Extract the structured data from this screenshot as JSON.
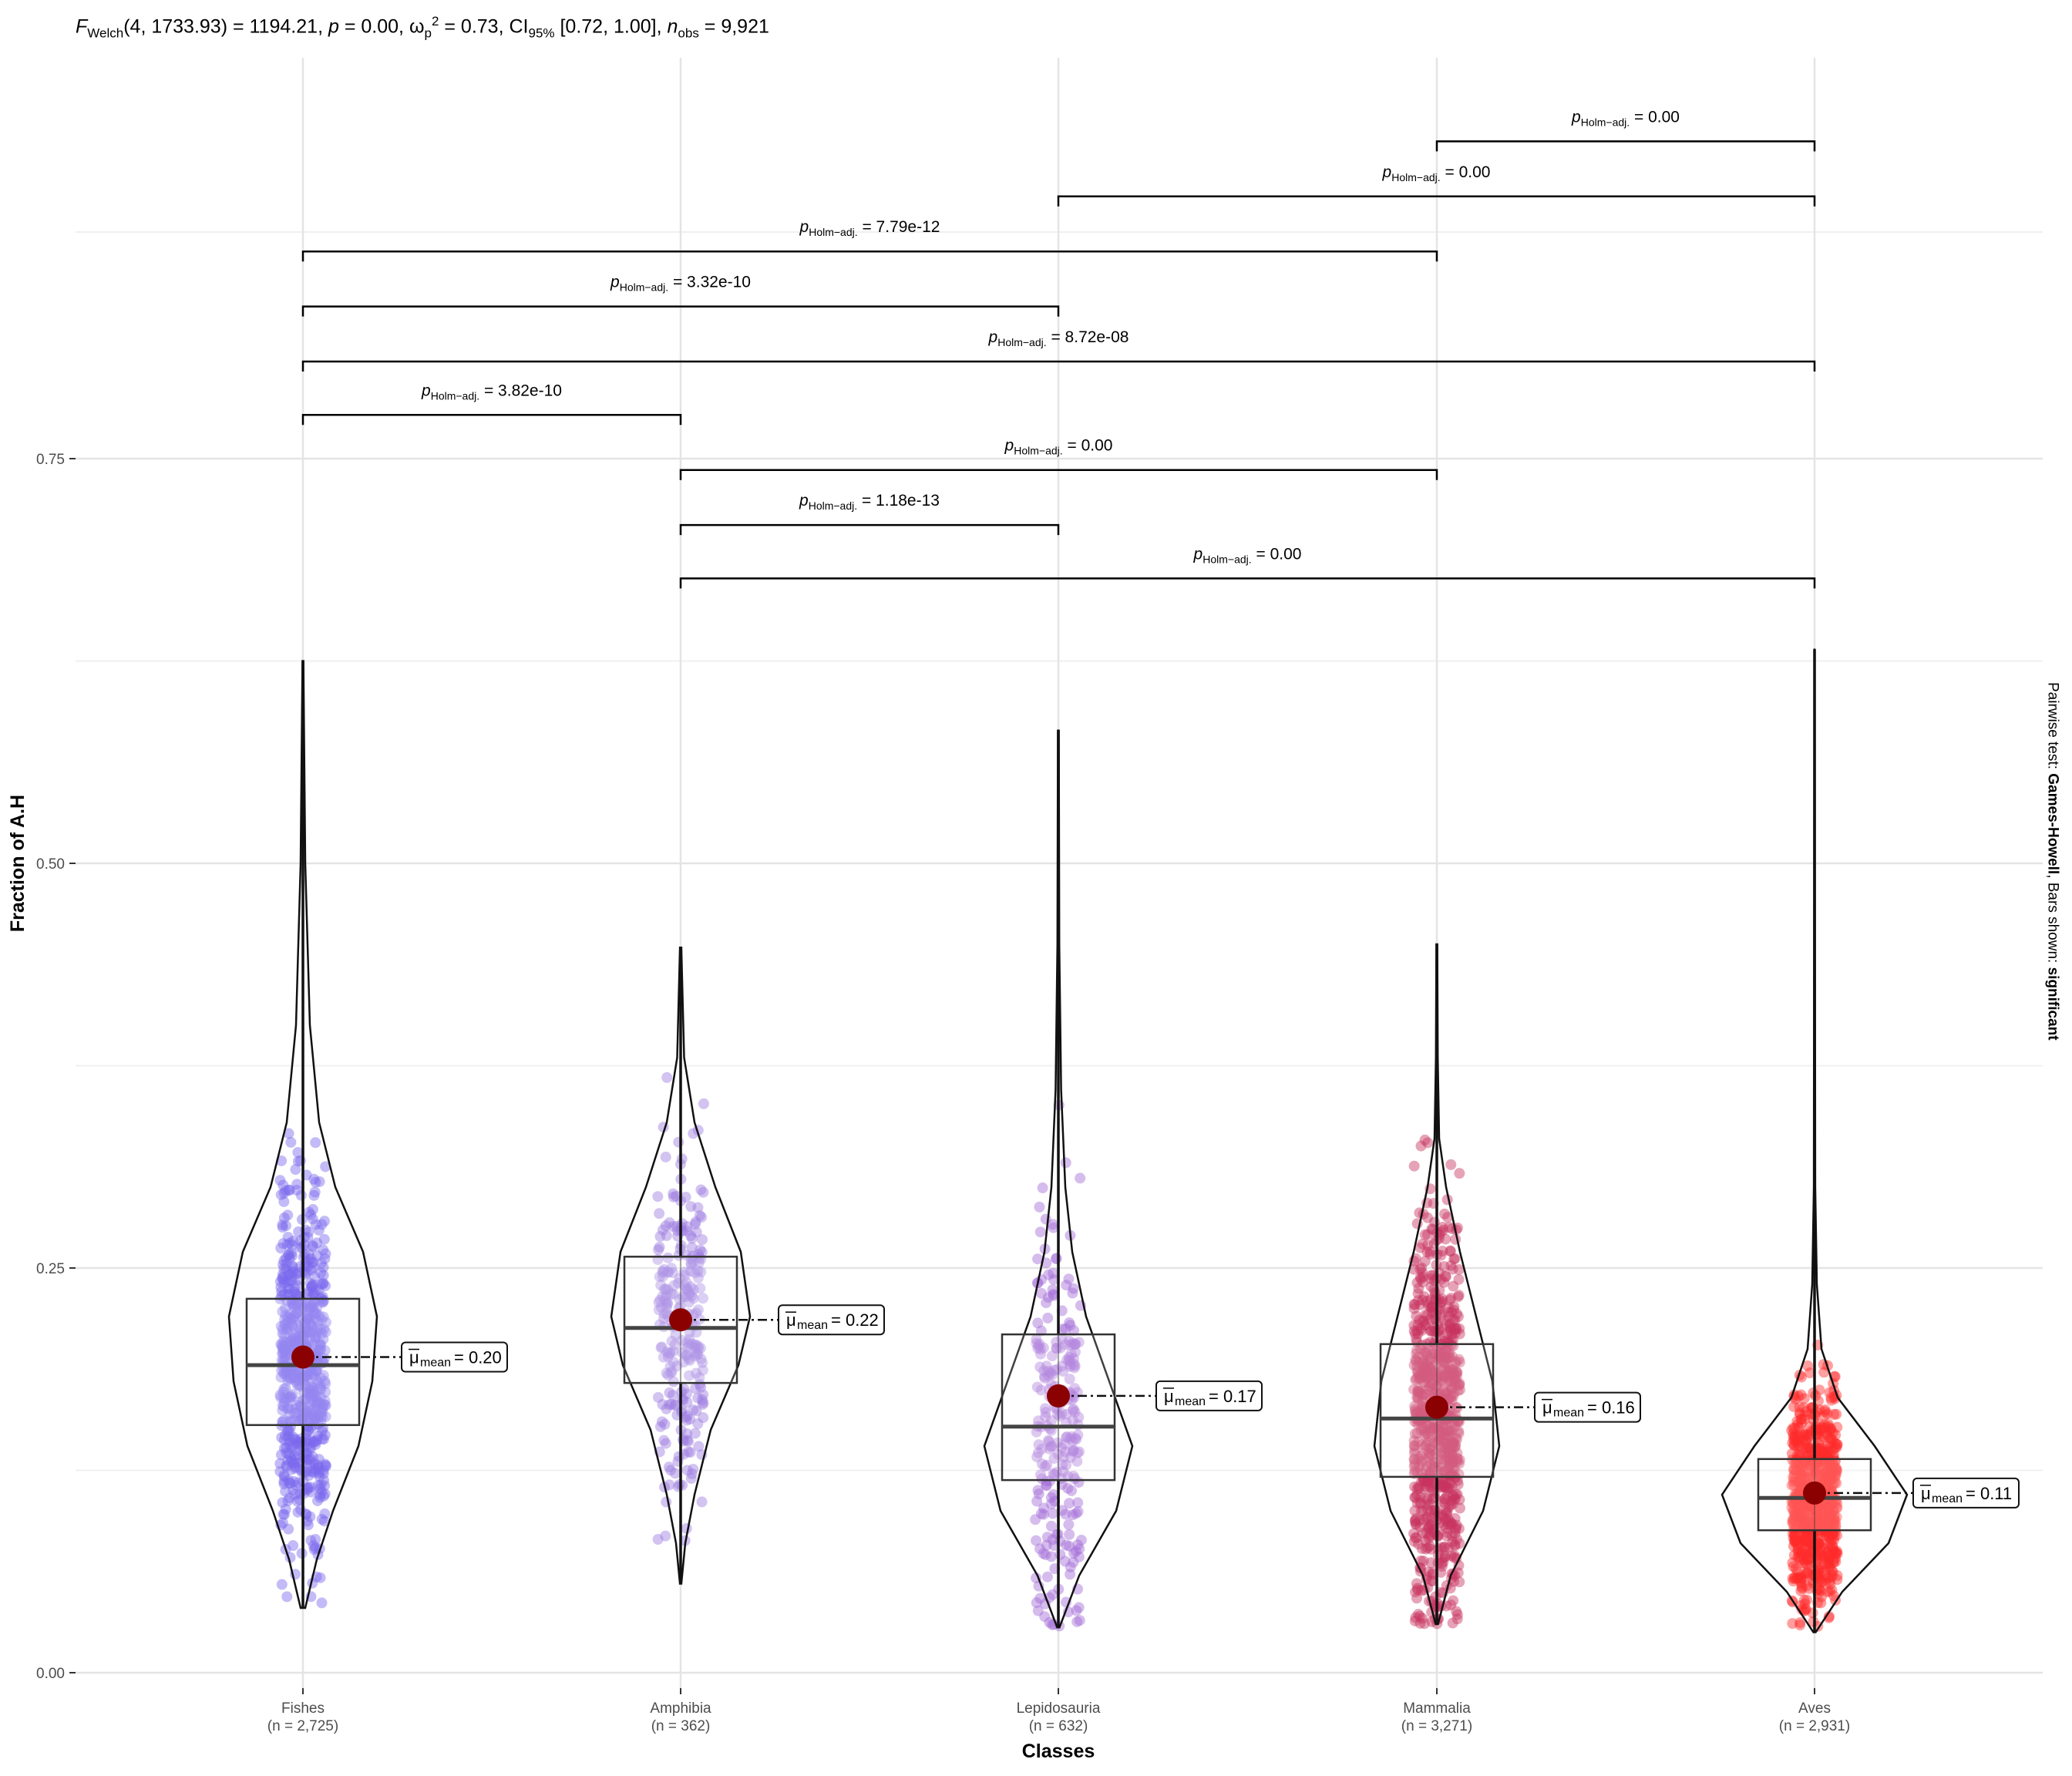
{
  "subtitle": {
    "stat_symbol": "F",
    "stat_sub": "Welch",
    "df": "4, 1733.93",
    "stat_value": "1194.21",
    "p_value": "0.00",
    "effect_symbol": "ω",
    "effect_sub": "p",
    "effect_value": "0.73",
    "ci_label": "CI",
    "ci_sub": "95%",
    "ci_value": "[0.72, 1.00]",
    "n_symbol": "n",
    "n_sub": "obs",
    "n_value": "9,921"
  },
  "caption": {
    "prefix": "Pairwise test: ",
    "test_name": "Games-Howell",
    "middle": ", Bars shown: ",
    "bars_shown": "significant"
  },
  "colors": {
    "Fishes": "#7b68ee",
    "Amphibia": "#9b7be0",
    "Lepidosauria": "#a16ad6",
    "Mammalia": "#c8325f",
    "Aves": "#ff2a2a",
    "mean_point": "#8b0000"
  },
  "chart_data": {
    "type": "violin-box-scatter",
    "xlabel": "Classes",
    "ylabel": "Fraction of A.H",
    "ylim": [
      0,
      0.83
    ],
    "yticks": [
      0.0,
      0.25,
      0.5,
      0.75
    ],
    "ytick_labels": [
      "0.00",
      "0.25",
      "0.50",
      "0.75"
    ],
    "grid": true,
    "categories": [
      "Fishes",
      "Amphibia",
      "Lepidosauria",
      "Mammalia",
      "Aves"
    ],
    "n_labels": [
      "(n = 2,725)",
      "(n = 362)",
      "(n = 632)",
      "(n = 3,271)",
      "(n = 2,931)"
    ],
    "groups": [
      {
        "name": "Fishes",
        "n": 2725,
        "mean": 0.195,
        "mean_label": "0.20",
        "median": 0.19,
        "q1": 0.153,
        "q3": 0.231,
        "min": 0.04,
        "max": 0.625,
        "violin": [
          [
            0.04,
            0.01
          ],
          [
            0.07,
            0.06
          ],
          [
            0.1,
            0.13
          ],
          [
            0.14,
            0.24
          ],
          [
            0.18,
            0.3
          ],
          [
            0.22,
            0.32
          ],
          [
            0.26,
            0.26
          ],
          [
            0.3,
            0.14
          ],
          [
            0.34,
            0.07
          ],
          [
            0.4,
            0.03
          ],
          [
            0.5,
            0.01
          ],
          [
            0.625,
            0.002
          ]
        ]
      },
      {
        "name": "Amphibia",
        "n": 362,
        "mean": 0.218,
        "mean_label": "0.22",
        "median": 0.213,
        "q1": 0.179,
        "q3": 0.257,
        "min": 0.055,
        "max": 0.448,
        "violin": [
          [
            0.055,
            0.003
          ],
          [
            0.08,
            0.02
          ],
          [
            0.11,
            0.06
          ],
          [
            0.15,
            0.13
          ],
          [
            0.19,
            0.25
          ],
          [
            0.22,
            0.3
          ],
          [
            0.26,
            0.26
          ],
          [
            0.3,
            0.15
          ],
          [
            0.34,
            0.06
          ],
          [
            0.38,
            0.015
          ],
          [
            0.448,
            0.003
          ]
        ]
      },
      {
        "name": "Lepidosauria",
        "n": 632,
        "mean": 0.171,
        "mean_label": "0.17",
        "median": 0.152,
        "q1": 0.119,
        "q3": 0.209,
        "min": 0.028,
        "max": 0.582,
        "violin": [
          [
            0.028,
            0.005
          ],
          [
            0.06,
            0.09
          ],
          [
            0.1,
            0.25
          ],
          [
            0.14,
            0.32
          ],
          [
            0.18,
            0.22
          ],
          [
            0.22,
            0.12
          ],
          [
            0.26,
            0.06
          ],
          [
            0.3,
            0.03
          ],
          [
            0.36,
            0.012
          ],
          [
            0.45,
            0.004
          ],
          [
            0.582,
            0.002
          ]
        ]
      },
      {
        "name": "Mammalia",
        "n": 3271,
        "mean": 0.164,
        "mean_label": "0.16",
        "median": 0.157,
        "q1": 0.121,
        "q3": 0.203,
        "min": 0.03,
        "max": 0.45,
        "violin": [
          [
            0.03,
            0.005
          ],
          [
            0.06,
            0.06
          ],
          [
            0.1,
            0.2
          ],
          [
            0.14,
            0.27
          ],
          [
            0.18,
            0.24
          ],
          [
            0.22,
            0.17
          ],
          [
            0.26,
            0.1
          ],
          [
            0.3,
            0.04
          ],
          [
            0.33,
            0.01
          ],
          [
            0.38,
            0.004
          ],
          [
            0.45,
            0.002
          ]
        ]
      },
      {
        "name": "Aves",
        "n": 2931,
        "mean": 0.111,
        "mean_label": "0.11",
        "median": 0.108,
        "q1": 0.088,
        "q3": 0.132,
        "min": 0.025,
        "max": 0.632,
        "violin": [
          [
            0.025,
            0.005
          ],
          [
            0.05,
            0.12
          ],
          [
            0.08,
            0.32
          ],
          [
            0.11,
            0.4
          ],
          [
            0.14,
            0.26
          ],
          [
            0.17,
            0.1
          ],
          [
            0.2,
            0.03
          ],
          [
            0.24,
            0.01
          ],
          [
            0.3,
            0.003
          ],
          [
            0.45,
            0.002
          ],
          [
            0.632,
            0.001
          ]
        ]
      }
    ],
    "comparisons": [
      {
        "from": "Mammalia",
        "to": "Aves",
        "label": "0.00",
        "level": 0.946
      },
      {
        "from": "Lepidosauria",
        "to": "Aves",
        "label": "0.00",
        "level": 0.912
      },
      {
        "from": "Fishes",
        "to": "Mammalia",
        "label": "7.79e-12",
        "level": 0.878
      },
      {
        "from": "Fishes",
        "to": "Lepidosauria",
        "label": "3.32e-10",
        "level": 0.844
      },
      {
        "from": "Fishes",
        "to": "Aves",
        "label": "8.72e-08",
        "level": 0.81
      },
      {
        "from": "Fishes",
        "to": "Amphibia",
        "label": "3.82e-10",
        "level": 0.777
      },
      {
        "from": "Amphibia",
        "to": "Mammalia",
        "label": "0.00",
        "level": 0.743
      },
      {
        "from": "Amphibia",
        "to": "Lepidosauria",
        "label": "1.18e-13",
        "level": 0.709
      },
      {
        "from": "Amphibia",
        "to": "Aves",
        "label": "0.00",
        "level": 0.676
      }
    ],
    "p_label": "p",
    "p_sub": "Holm−adj.",
    "mean_symbol": "μ",
    "mean_sub": "mean"
  }
}
